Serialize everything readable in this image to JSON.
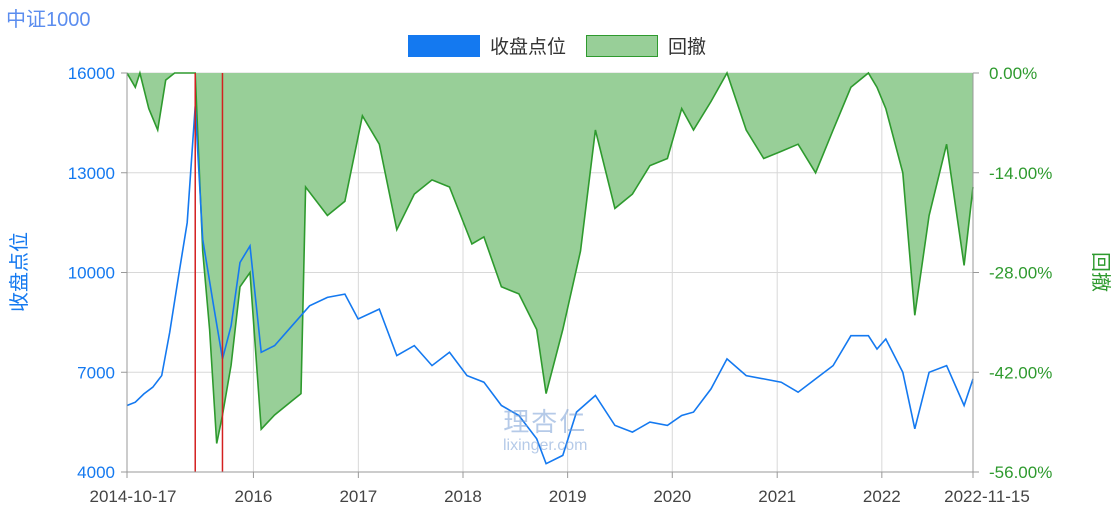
{
  "chart_data": {
    "type": "line",
    "title": "中证1000",
    "legend": {
      "placement": "top-center",
      "items": [
        "收盘点位",
        "回撤"
      ]
    },
    "colors": {
      "close": "#1479f0",
      "drawdown_line": "#2e9a2e",
      "drawdown_fill": "#98cf98",
      "marker": "#d42020",
      "left_axis": "#1479f0",
      "right_axis": "#2e9a2e",
      "title": "#5b8def"
    },
    "grid": true,
    "y_left": {
      "label": "收盘点位",
      "lim": [
        4000,
        16000
      ],
      "ticks": [
        "4000",
        "7000",
        "10000",
        "13000",
        "16000"
      ]
    },
    "y_right": {
      "label": "回撤",
      "lim": [
        -0.56,
        0
      ],
      "ticks": [
        "-56.00%",
        "-42.00%",
        "-28.00%",
        "-14.00%",
        "0.00%"
      ]
    },
    "x_axis": {
      "ticks": [
        "2014-10-17",
        "2016",
        "2017",
        "2018",
        "2019",
        "2020",
        "2021",
        "2022",
        "2022-11-15"
      ]
    },
    "x_range": [
      "2014-10-17",
      "2022-11-15"
    ],
    "markers": [
      "2015-06-12",
      "2015-09-15"
    ],
    "series": [
      {
        "name": "收盘点位",
        "dates": [
          "2014-10-17",
          "2014-11-15",
          "2014-12-15",
          "2015-01-15",
          "2015-02-15",
          "2015-03-15",
          "2015-04-15",
          "2015-05-15",
          "2015-06-12",
          "2015-07-08",
          "2015-08-15",
          "2015-09-15",
          "2015-10-15",
          "2015-11-15",
          "2015-12-20",
          "2016-01-28",
          "2016-03-15",
          "2016-05-15",
          "2016-07-15",
          "2016-09-15",
          "2016-11-15",
          "2016-12-31",
          "2017-03-15",
          "2017-05-15",
          "2017-07-15",
          "2017-09-15",
          "2017-11-15",
          "2018-01-15",
          "2018-03-15",
          "2018-05-15",
          "2018-07-15",
          "2018-09-15",
          "2018-10-18",
          "2018-12-15",
          "2019-02-01",
          "2019-04-08",
          "2019-06-15",
          "2019-08-15",
          "2019-10-15",
          "2019-12-15",
          "2020-02-03",
          "2020-03-15",
          "2020-05-15",
          "2020-07-10",
          "2020-09-15",
          "2020-11-15",
          "2021-01-15",
          "2021-03-15",
          "2021-05-15",
          "2021-07-15",
          "2021-09-15",
          "2021-11-15",
          "2021-12-15",
          "2022-01-15",
          "2022-03-15",
          "2022-04-26",
          "2022-06-15",
          "2022-08-15",
          "2022-10-15",
          "2022-11-15"
        ],
        "values": [
          6000,
          6100,
          6350,
          6550,
          6900,
          8200,
          9900,
          11500,
          15000,
          11000,
          9000,
          7400,
          8400,
          10300,
          10800,
          7600,
          7800,
          8400,
          9000,
          9250,
          9350,
          8600,
          8900,
          7500,
          7800,
          7200,
          7600,
          6900,
          6700,
          6000,
          5700,
          5000,
          4250,
          4500,
          5800,
          6300,
          5400,
          5200,
          5500,
          5400,
          5700,
          5800,
          6500,
          7400,
          6900,
          6800,
          6700,
          6400,
          6800,
          7200,
          8100,
          8100,
          7700,
          8000,
          7000,
          5300,
          7000,
          7200,
          6000,
          6800
        ]
      },
      {
        "name": "回撤",
        "dates": [
          "2014-10-17",
          "2014-11-15",
          "2014-12-01",
          "2015-01-01",
          "2015-02-01",
          "2015-03-01",
          "2015-04-01",
          "2015-05-01",
          "2015-06-12",
          "2015-07-08",
          "2015-08-01",
          "2015-08-26",
          "2015-09-15",
          "2015-10-15",
          "2015-11-15",
          "2015-12-20",
          "2016-01-28",
          "2016-03-15",
          "2016-05-15",
          "2016-06-15",
          "2016-07-01",
          "2016-09-15",
          "2016-11-15",
          "2017-01-15",
          "2017-03-15",
          "2017-05-15",
          "2017-07-15",
          "2017-09-15",
          "2017-11-15",
          "2018-02-01",
          "2018-03-15",
          "2018-05-15",
          "2018-07-15",
          "2018-09-15",
          "2018-10-18",
          "2018-12-15",
          "2019-02-15",
          "2019-04-08",
          "2019-06-15",
          "2019-08-15",
          "2019-10-15",
          "2019-12-15",
          "2020-02-03",
          "2020-03-15",
          "2020-05-15",
          "2020-07-10",
          "2020-09-15",
          "2020-11-15",
          "2021-01-15",
          "2021-03-15",
          "2021-05-15",
          "2021-07-15",
          "2021-09-15",
          "2021-11-15",
          "2021-12-15",
          "2022-01-15",
          "2022-03-15",
          "2022-04-26",
          "2022-06-15",
          "2022-08-15",
          "2022-10-15",
          "2022-11-15"
        ],
        "values": [
          0,
          -0.02,
          0,
          -0.05,
          -0.08,
          -0.01,
          0,
          0,
          0,
          -0.25,
          -0.36,
          -0.52,
          -0.48,
          -0.41,
          -0.3,
          -0.28,
          -0.5,
          -0.48,
          -0.46,
          -0.45,
          -0.16,
          -0.2,
          -0.18,
          -0.06,
          -0.1,
          -0.22,
          -0.17,
          -0.15,
          -0.16,
          -0.24,
          -0.23,
          -0.3,
          -0.31,
          -0.36,
          -0.45,
          -0.36,
          -0.25,
          -0.08,
          -0.19,
          -0.17,
          -0.13,
          -0.12,
          -0.05,
          -0.08,
          -0.04,
          0,
          -0.08,
          -0.12,
          -0.11,
          -0.1,
          -0.14,
          -0.08,
          -0.02,
          0,
          -0.02,
          -0.05,
          -0.14,
          -0.34,
          -0.2,
          -0.1,
          -0.27,
          -0.16
        ]
      }
    ]
  },
  "watermark": {
    "text": "理杏仁",
    "subtext": "lixinger.com"
  }
}
